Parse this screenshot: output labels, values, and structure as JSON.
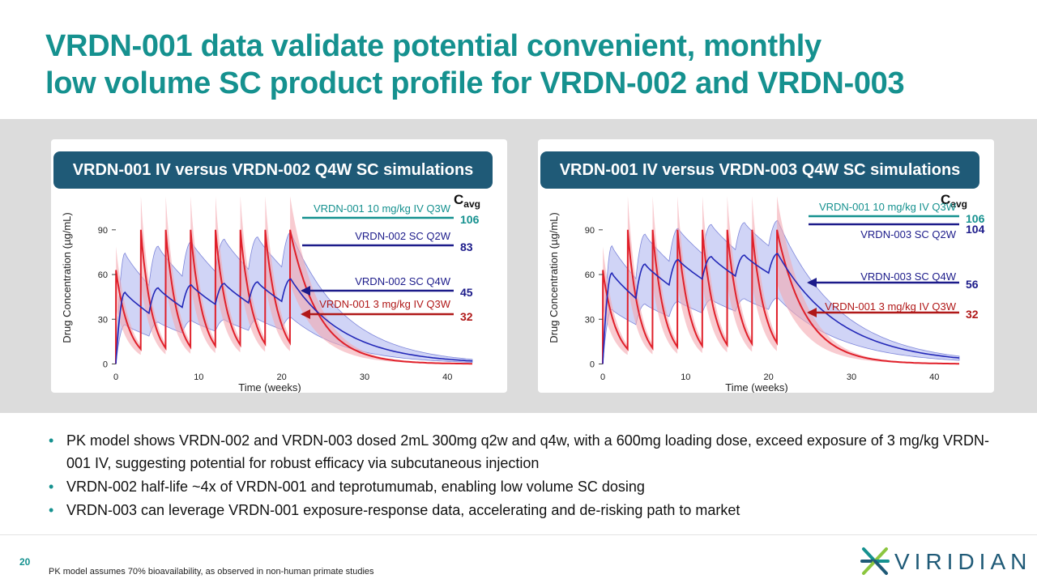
{
  "title": {
    "line1": "VRDN-001 data validate potential convenient, monthly",
    "line2": "low volume SC product profile for VRDN-002 and VRDN-003"
  },
  "chart_data": [
    {
      "type": "line",
      "panel_title": "VRDN-001 IV versus VRDN-002 Q4W SC simulations",
      "xlabel": "Time (weeks)",
      "ylabel": "Drug Concentration (µg/mL)",
      "xticks": [
        0,
        10,
        20,
        30,
        40
      ],
      "yticks": [
        0,
        30,
        60,
        90
      ],
      "xlim": [
        0,
        43
      ],
      "ylim": [
        -3,
        110
      ],
      "cavg_label": {
        "main": "C",
        "sub": "avg"
      },
      "iv": {
        "first_dose": 0,
        "interval": 3,
        "doses": 8,
        "peak_median": 90,
        "peak_first": 63,
        "trough_start": 10,
        "trough_end": 15,
        "half_life": 2.4,
        "band_lo": 0.6,
        "band_hi": 1.25
      },
      "sc": {
        "interval": 4,
        "doses": 6,
        "first_dose": 0,
        "peak_first": 48,
        "peaks": [
          48,
          51,
          53,
          54,
          55,
          57
        ],
        "trough_first": 34,
        "troughs": [
          34,
          38,
          40,
          41,
          42,
          43
        ],
        "tail_end": 2,
        "band_lo": 0.55,
        "band_hi": 1.55
      },
      "series": [
        {
          "name": "VRDN-001 10 mg/kg IV Q3W",
          "cavg": "106",
          "color": "#15918f"
        },
        {
          "name": "VRDN-002 SC Q2W",
          "cavg": "83",
          "color": "#1c1b8a"
        },
        {
          "name": "VRDN-002 SC Q4W",
          "cavg": "45",
          "color": "#1c1b8a"
        },
        {
          "name": "VRDN-001 3 mg/kg IV Q3W",
          "cavg": "32",
          "color": "#b01818"
        }
      ]
    },
    {
      "type": "line",
      "panel_title": "VRDN-001 IV versus VRDN-003 Q4W SC simulations",
      "xlabel": "Time (weeks)",
      "ylabel": "Drug Concentration (µg/mL)",
      "xticks": [
        0,
        10,
        20,
        30,
        40
      ],
      "yticks": [
        0,
        30,
        60,
        90
      ],
      "xlim": [
        0,
        43
      ],
      "ylim": [
        -3,
        110
      ],
      "cavg_label": {
        "main": "C",
        "sub": "avg"
      },
      "iv": {
        "first_dose": 0,
        "interval": 3,
        "doses": 8,
        "peak_median": 90,
        "peak_first": 63,
        "trough_start": 10,
        "trough_end": 15,
        "half_life": 2.4,
        "band_lo": 0.6,
        "band_hi": 1.25
      },
      "sc": {
        "interval": 4,
        "doses": 6,
        "first_dose": 0,
        "peak_first": 61,
        "peaks": [
          61,
          67,
          70,
          72,
          73,
          74
        ],
        "trough_first": 44,
        "troughs": [
          44,
          53,
          57,
          59,
          61,
          62
        ],
        "tail_end": 4,
        "band_lo": 0.6,
        "band_hi": 1.3
      },
      "series": [
        {
          "name": "VRDN-001 10 mg/kg IV Q3W",
          "cavg": "106",
          "color": "#15918f"
        },
        {
          "name": "VRDN-003 SC Q2W",
          "cavg": "104",
          "color": "#1c1b8a"
        },
        {
          "name": "VRDN-003 SC Q4W",
          "cavg": "56",
          "color": "#1c1b8a"
        },
        {
          "name": "VRDN-001 3 mg/kg IV Q3W",
          "cavg": "32",
          "color": "#b01818"
        }
      ]
    }
  ],
  "bullets": [
    "PK model shows VRDN-002 and VRDN-003 dosed 2mL 300mg q2w and q4w, with a 600mg loading dose, exceed exposure of 3 mg/kg VRDN-001 IV, suggesting potential for robust efficacy via subcutaneous injection",
    "VRDN-002 half-life ~4x of VRDN-001 and teprotumumab, enabling low volume SC dosing",
    "VRDN-003 can leverage VRDN-001 exposure-response data, accelerating and de-risking path to market"
  ],
  "footer": {
    "page_number": "20",
    "note": "PK model assumes 70% bioavailability, as observed in non-human primate studies",
    "logo_text": "VIRIDIAN"
  },
  "colors": {
    "teal": "#15918f",
    "navy": "#1f5a77",
    "iv_red": "#e0202a",
    "sc_blue": "#2328b8",
    "label_red": "#b01818",
    "label_blue": "#1c1b8a"
  }
}
